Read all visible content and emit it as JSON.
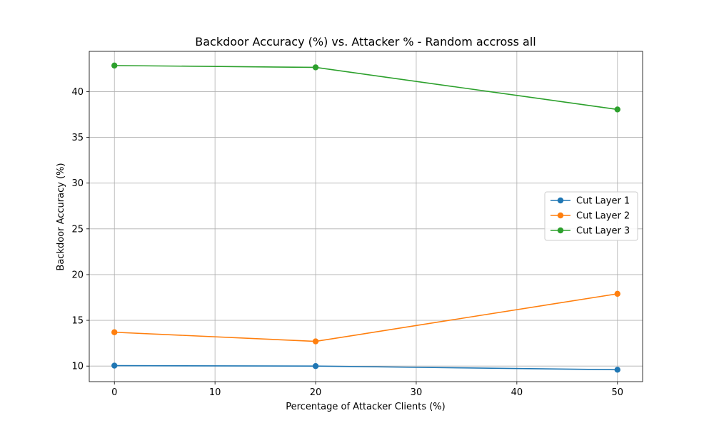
{
  "chart_data": {
    "type": "line",
    "title": "Backdoor Accuracy (%) vs. Attacker % - Random accross all",
    "xlabel": "Percentage of Attacker Clients (%)",
    "ylabel": "Backdoor Accuracy (%)",
    "x": [
      0,
      20,
      50
    ],
    "xlim": [
      -2.5,
      52.5
    ],
    "ylim": [
      8.3,
      44.4
    ],
    "xticks": [
      0,
      10,
      20,
      30,
      40,
      50
    ],
    "yticks": [
      10,
      15,
      20,
      25,
      30,
      35,
      40
    ],
    "grid": true,
    "legend_position": "center-right",
    "series": [
      {
        "name": "Cut Layer 1",
        "color": "#1f77b4",
        "values": [
          10.05,
          10.0,
          9.6
        ]
      },
      {
        "name": "Cut Layer 2",
        "color": "#ff7f0e",
        "values": [
          13.7,
          12.7,
          17.9
        ]
      },
      {
        "name": "Cut Layer 3",
        "color": "#2ca02c",
        "values": [
          42.85,
          42.65,
          38.05
        ]
      }
    ]
  }
}
